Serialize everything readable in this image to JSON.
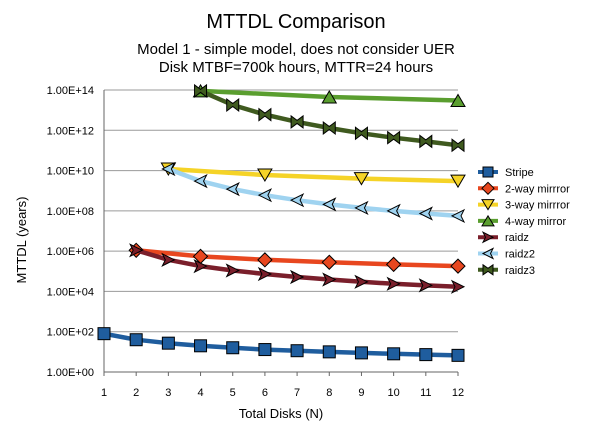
{
  "chart_data": {
    "type": "line",
    "title": "MTTDL Comparison",
    "subtitle_lines": [
      "Model 1 - simple model, does not consider UER",
      "Disk MTBF=700k hours, MTTR=24 hours"
    ],
    "xlabel": "Total Disks (N)",
    "ylabel": "MTTDL (years)",
    "xlim": [
      1,
      12
    ],
    "x_ticks": [
      "1",
      "2",
      "3",
      "4",
      "5",
      "6",
      "7",
      "8",
      "9",
      "10",
      "11",
      "12"
    ],
    "ylim_log10": [
      0,
      14
    ],
    "y_scale": "log10",
    "y_ticks": [
      "1.00E+00",
      "1.00E+02",
      "1.00E+04",
      "1.00E+06",
      "1.00E+08",
      "1.00E+10",
      "1.00E+12",
      "1.00E+14"
    ],
    "grid": "horizontal",
    "legend_position": "right",
    "series": [
      {
        "name": "Stripe",
        "color": "#1f5d9e",
        "marker": "square",
        "x": [
          1,
          2,
          3,
          4,
          5,
          6,
          7,
          8,
          9,
          10,
          11,
          12
        ],
        "y": [
          80,
          40,
          27,
          20,
          16,
          13,
          11.4,
          10,
          8.9,
          8,
          7.3,
          6.7
        ]
      },
      {
        "name": "2-way mirrror",
        "color": "#e8471f",
        "marker": "diamond",
        "x": [
          2,
          4,
          6,
          8,
          10,
          12
        ],
        "y": [
          1100000.0,
          550000.0,
          370000.0,
          280000.0,
          220000.0,
          180000.0
        ]
      },
      {
        "name": "3-way mirrror",
        "color": "#f5d327",
        "marker": "triangle-down",
        "x": [
          3,
          6,
          9,
          12
        ],
        "y": [
          12000000000.0,
          6000000000.0,
          4000000000.0,
          3000000000.0
        ]
      },
      {
        "name": "4-way mirror",
        "color": "#5a9e2f",
        "marker": "triangle-up",
        "x": [
          4,
          8,
          12
        ],
        "y": [
          90000000000000.0,
          45000000000000.0,
          30000000000000.0
        ]
      },
      {
        "name": "raidz",
        "color": "#7a1f2b",
        "marker": "arrow-right",
        "x": [
          2,
          3,
          4,
          5,
          6,
          7,
          8,
          9,
          10,
          11,
          12
        ],
        "y": [
          1100000.0,
          370000.0,
          180000.0,
          110000.0,
          73000.0,
          52000.0,
          39000.0,
          30000.0,
          24000.0,
          20000.0,
          17000.0
        ]
      },
      {
        "name": "raidz2",
        "color": "#9fd3f0",
        "marker": "arrow-left",
        "x": [
          3,
          4,
          5,
          6,
          7,
          8,
          9,
          10,
          11,
          12
        ],
        "y": [
          12000000000.0,
          3000000000.0,
          1200000000.0,
          600000000.0,
          340000000.0,
          210000000.0,
          140000000.0,
          100000000.0,
          74000000.0,
          56000000.0
        ]
      },
      {
        "name": "raidz3",
        "color": "#3f5a1f",
        "marker": "bowtie",
        "x": [
          4,
          5,
          6,
          7,
          8,
          9,
          10,
          11,
          12
        ],
        "y": [
          90000000000000.0,
          18000000000000.0,
          6000000000000.0,
          2600000000000.0,
          1300000000000.0,
          710000000000.0,
          430000000000.0,
          280000000000.0,
          180000000000.0
        ]
      }
    ]
  }
}
